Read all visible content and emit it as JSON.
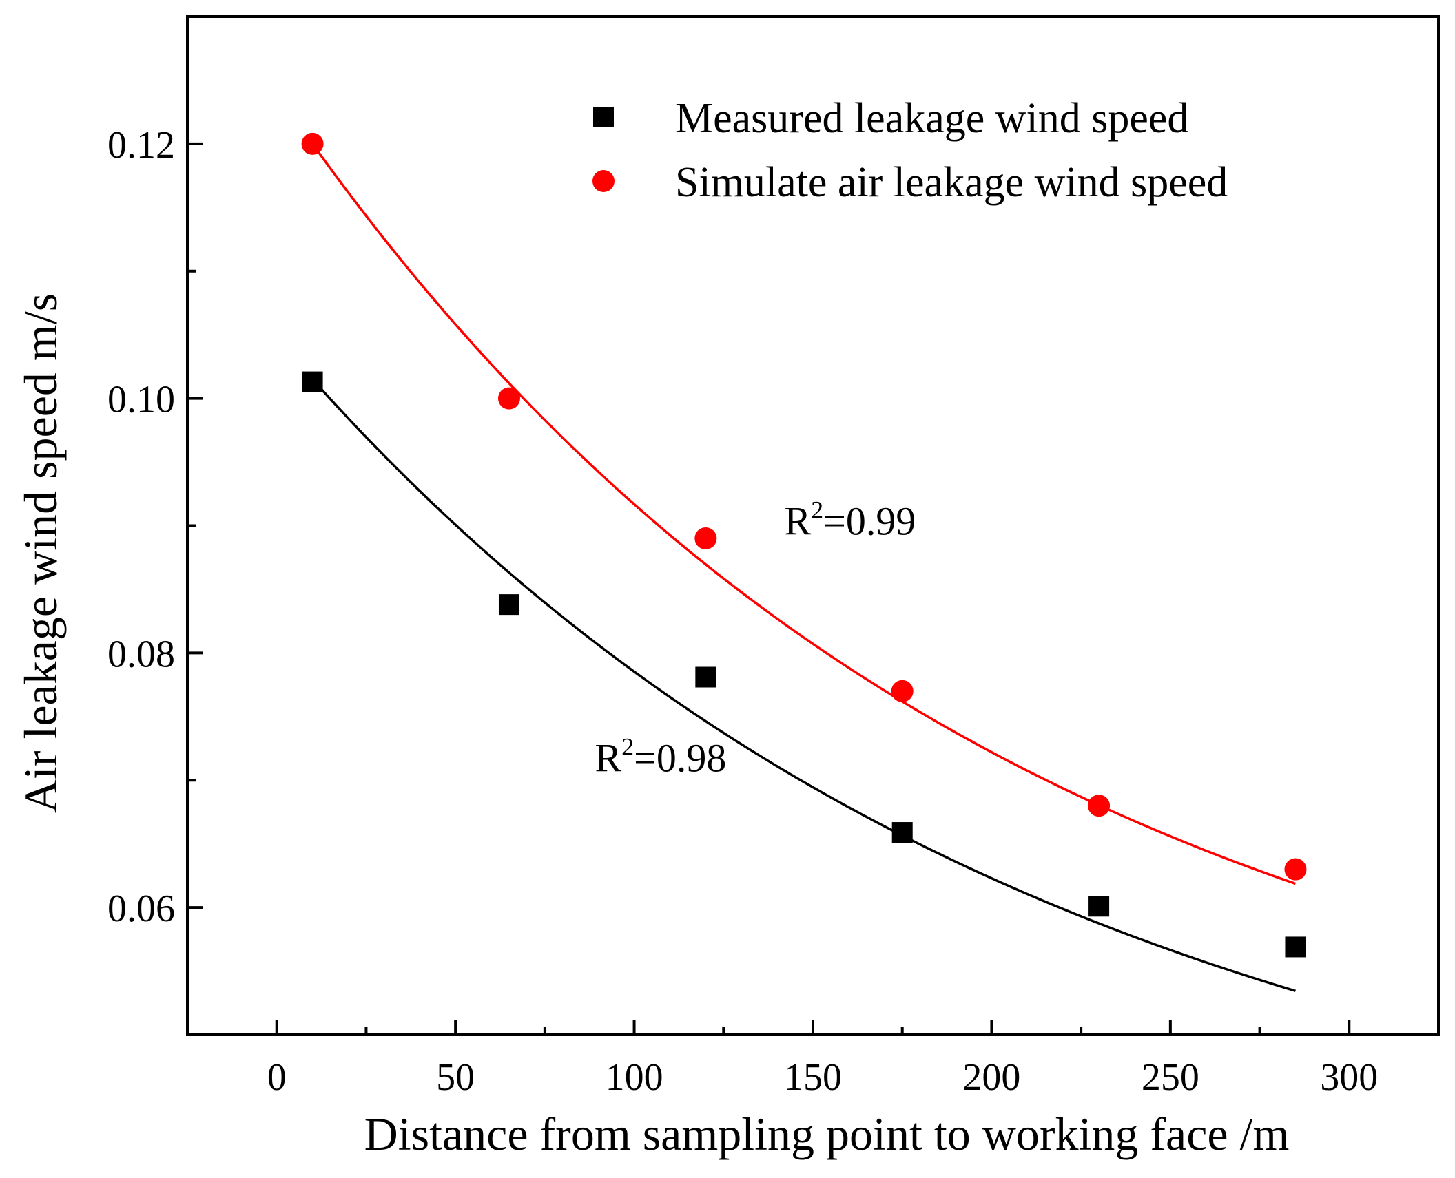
{
  "chart_data": {
    "type": "scatter",
    "xlabel": "Distance from sampling point to working face /m",
    "ylabel": "Air leakage wind speed m/s",
    "xlim": [
      -25,
      325
    ],
    "ylim": [
      0.05,
      0.13
    ],
    "xticks": [
      0,
      50,
      100,
      150,
      200,
      250,
      300
    ],
    "xtick_labels": [
      "0",
      "50",
      "100",
      "150",
      "200",
      "250",
      "300"
    ],
    "yticks": [
      0.06,
      0.08,
      0.1,
      0.12
    ],
    "ytick_labels": [
      "0.06",
      "0.08",
      "0.10",
      "0.12"
    ],
    "grid": false,
    "legend_position": "top-right",
    "series": [
      {
        "name": "Measured leakage wind speed",
        "marker": "square",
        "color": "#000000",
        "x": [
          10,
          65,
          120,
          175,
          230,
          285
        ],
        "y": [
          0.1013,
          0.0838,
          0.0781,
          0.0659,
          0.0601,
          0.0569
        ],
        "fit": {
          "type": "exponential",
          "x0": 10,
          "a": 0.0657,
          "b": 0.00478,
          "c": 0.0358,
          "annotation": "R²=0.98"
        }
      },
      {
        "name": "Simulate air leakage wind speed",
        "marker": "circle",
        "color": "#ff0000",
        "x": [
          10,
          65,
          120,
          175,
          230,
          285
        ],
        "y": [
          0.12,
          0.1,
          0.089,
          0.077,
          0.068,
          0.063
        ],
        "fit": {
          "type": "exponential",
          "x0": 10,
          "a": 0.0773,
          "b": 0.00507,
          "c": 0.0427,
          "annotation": "R²=0.99"
        }
      }
    ],
    "annotations": [
      {
        "base": "R",
        "sup": "2",
        "rest": "=0.99",
        "x": 142,
        "y": 0.0893
      },
      {
        "base": "R",
        "sup": "2",
        "rest": "=0.98",
        "x": 89,
        "y": 0.0707
      }
    ]
  }
}
